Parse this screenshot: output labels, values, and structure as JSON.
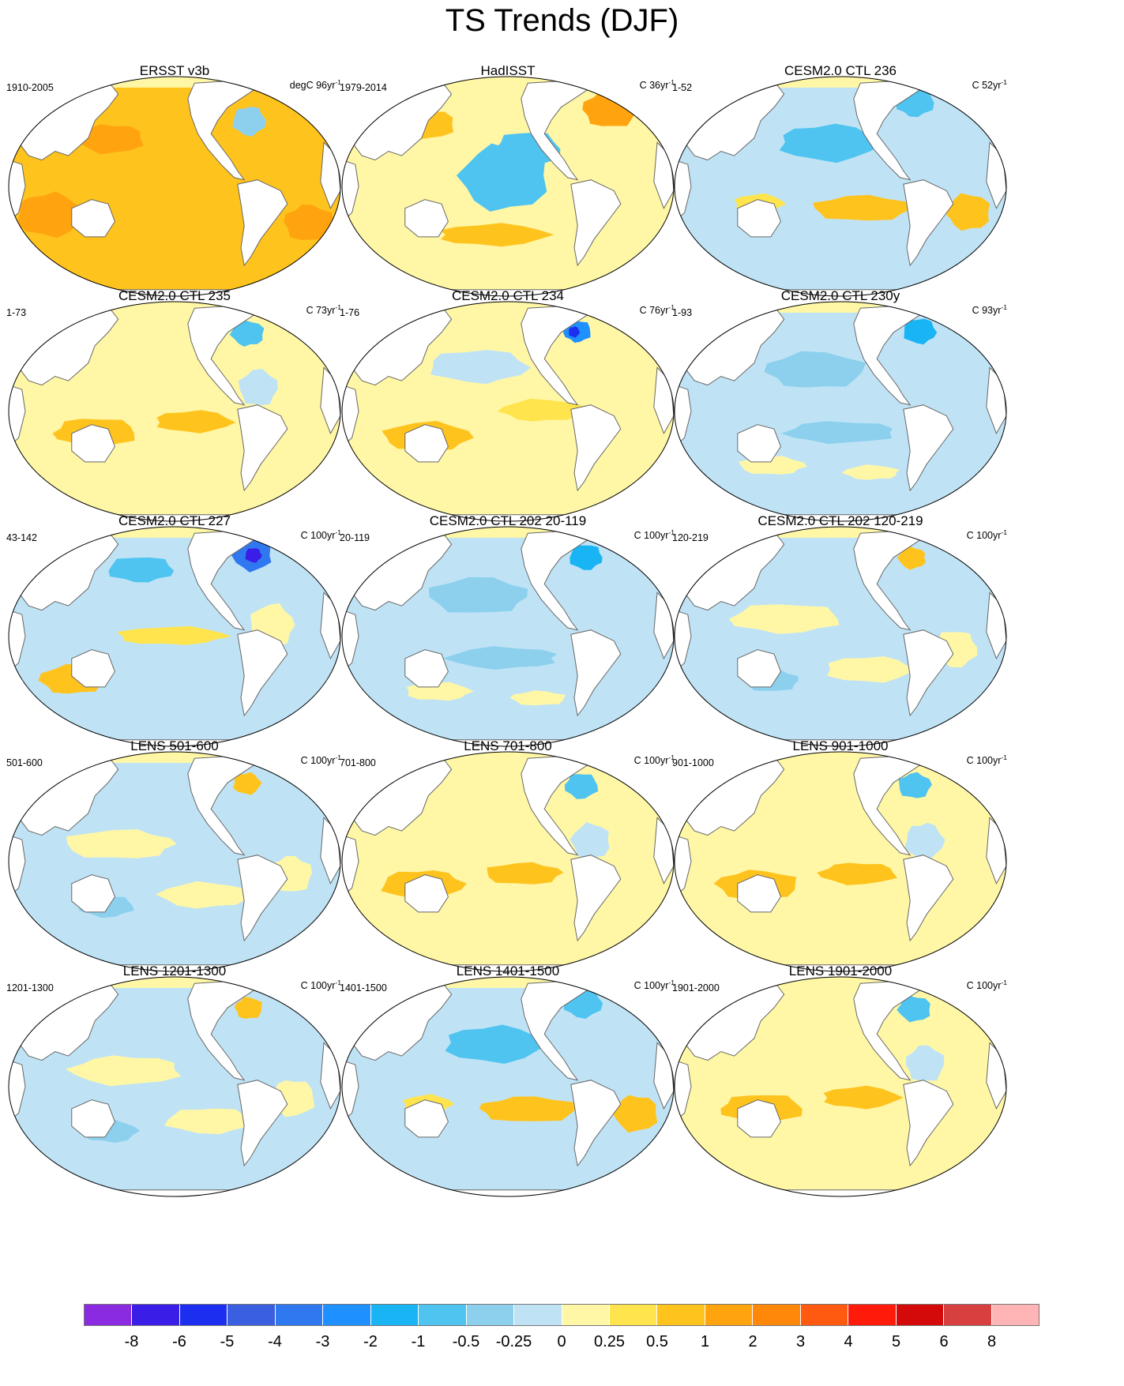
{
  "figure": {
    "title": "TS Trends (DJF)"
  },
  "panels": [
    {
      "title": "ERSST v3b",
      "period": "1910-2005",
      "units_prefix": "degC 96yr",
      "units_exponent": "-1",
      "pattern": "warm"
    },
    {
      "title": "HadISST",
      "period": "1979-2014",
      "units_prefix": "C 36yr",
      "units_exponent": "-1",
      "pattern": "pdo_warm"
    },
    {
      "title": "CESM2.0 CTL 236",
      "period": "1-52",
      "units_prefix": "C 52yr",
      "units_exponent": "-1",
      "pattern": "mixed_cool"
    },
    {
      "title": "CESM2.0 CTL 235",
      "period": "1-73",
      "units_prefix": "C 73yr",
      "units_exponent": "-1",
      "pattern": "mixed_warm"
    },
    {
      "title": "CESM2.0 CTL 234",
      "period": "1-76",
      "units_prefix": "C 76yr",
      "units_exponent": "-1",
      "pattern": "mixed_warm_na"
    },
    {
      "title": "CESM2.0 CTL 230y",
      "period": "1-93",
      "units_prefix": "C 93yr",
      "units_exponent": "-1",
      "pattern": "cool"
    },
    {
      "title": "CESM2.0 CTL 227",
      "period": "43-142",
      "units_prefix": "C 100yr",
      "units_exponent": "-1",
      "pattern": "mixed_na_cold"
    },
    {
      "title": "CESM2.0 CTL 202 20-119",
      "period": "20-119",
      "units_prefix": "C 100yr",
      "units_exponent": "-1",
      "pattern": "cool"
    },
    {
      "title": "CESM2.0 CTL 202 120-219",
      "period": "120-219",
      "units_prefix": "C 100yr",
      "units_exponent": "-1",
      "pattern": "mixed"
    },
    {
      "title": "LENS 501-600",
      "period": "501-600",
      "units_prefix": "C 100yr",
      "units_exponent": "-1",
      "pattern": "mixed"
    },
    {
      "title": "LENS 701-800",
      "period": "701-800",
      "units_prefix": "C 100yr",
      "units_exponent": "-1",
      "pattern": "mixed_warm"
    },
    {
      "title": "LENS 901-1000",
      "period": "901-1000",
      "units_prefix": "C 100yr",
      "units_exponent": "-1",
      "pattern": "mixed_warm"
    },
    {
      "title": "LENS 1201-1300",
      "period": "1201-1300",
      "units_prefix": "C 100yr",
      "units_exponent": "-1",
      "pattern": "mixed"
    },
    {
      "title": "LENS 1401-1500",
      "period": "1401-1500",
      "units_prefix": "C 100yr",
      "units_exponent": "-1",
      "pattern": "mixed_cool"
    },
    {
      "title": "LENS 1901-2000",
      "period": "1901-2000",
      "units_prefix": "C 100yr",
      "units_exponent": "-1",
      "pattern": "mixed_warm"
    }
  ],
  "colorbar": {
    "colors": [
      "#8a2be2",
      "#3a1de6",
      "#1c2ff0",
      "#3a5fe0",
      "#2f78f0",
      "#1e90ff",
      "#18b4f4",
      "#4fc4f0",
      "#8dd0ee",
      "#bfe3f5",
      "#fff7a6",
      "#ffe44d",
      "#ffc31e",
      "#ffa40e",
      "#ff870a",
      "#ff5a10",
      "#ff1a0a",
      "#d40a0a",
      "#d84040",
      "#ffb5b5"
    ],
    "labels": [
      "-8",
      "-6",
      "-5",
      "-4",
      "-3",
      "-2",
      "-1",
      "-0.5",
      "-0.25",
      "0",
      "0.25",
      "0.5",
      "1",
      "2",
      "3",
      "4",
      "5",
      "6",
      "8"
    ]
  }
}
